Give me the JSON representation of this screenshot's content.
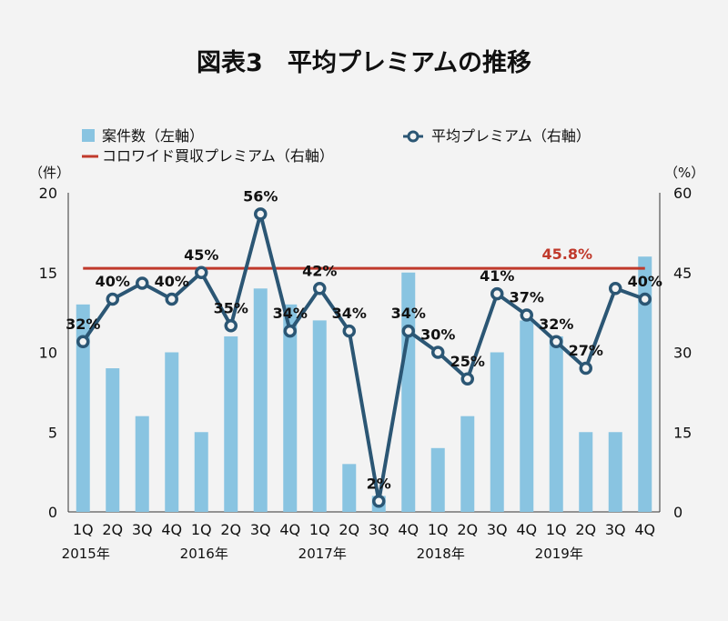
{
  "chart_data": {
    "type": "bar+line",
    "title": "図表3　平均プレミアムの推移",
    "left_axis_unit": "（件）",
    "right_axis_unit": "（%）",
    "left_axis": {
      "min": 0,
      "max": 20,
      "ticks": [
        "0",
        "5",
        "10",
        "15",
        "20"
      ]
    },
    "right_axis": {
      "min": 0,
      "max": 60,
      "ticks": [
        "0",
        "15",
        "30",
        "45",
        "60"
      ]
    },
    "categories": [
      "1Q",
      "2Q",
      "3Q",
      "4Q",
      "1Q",
      "2Q",
      "3Q",
      "4Q",
      "1Q",
      "2Q",
      "3Q",
      "4Q",
      "1Q",
      "2Q",
      "3Q",
      "4Q",
      "1Q",
      "2Q",
      "3Q",
      "4Q"
    ],
    "years": [
      "2015年",
      "2016年",
      "2017年",
      "2018年",
      "2019年"
    ],
    "legend": {
      "bars": "案件数（左軸）",
      "line": "平均プレミアム（右軸）",
      "reference": "コロワイド買収プレミアム（右軸）"
    },
    "series": [
      {
        "name": "案件数（左軸）",
        "axis": "left",
        "values": [
          13,
          9,
          6,
          10,
          5,
          11,
          14,
          13,
          12,
          3,
          1,
          15,
          4,
          6,
          10,
          12,
          11,
          5,
          5,
          16
        ]
      },
      {
        "name": "平均プレミアム（右軸）",
        "axis": "right",
        "values": [
          32,
          40,
          43,
          40,
          45,
          35,
          56,
          34,
          42,
          34,
          2,
          34,
          30,
          25,
          41,
          37,
          32,
          27,
          42,
          40
        ],
        "labels": [
          "32%",
          "40%",
          "",
          "40%",
          "45%",
          "35%",
          "56%",
          "34%",
          "42%",
          "34%",
          "2%",
          "34%",
          "30%",
          "25%",
          "41%",
          "37%",
          "32%",
          "27%",
          "",
          "40%"
        ]
      }
    ],
    "reference_line": {
      "name": "コロワイド買収プレミアム（右軸）",
      "value": 45.8,
      "label": "45.8%"
    },
    "colors": {
      "bar": "#89c4e1",
      "line": "#2b5674",
      "reference": "#c0392b",
      "background": "#f3f3f3"
    }
  }
}
